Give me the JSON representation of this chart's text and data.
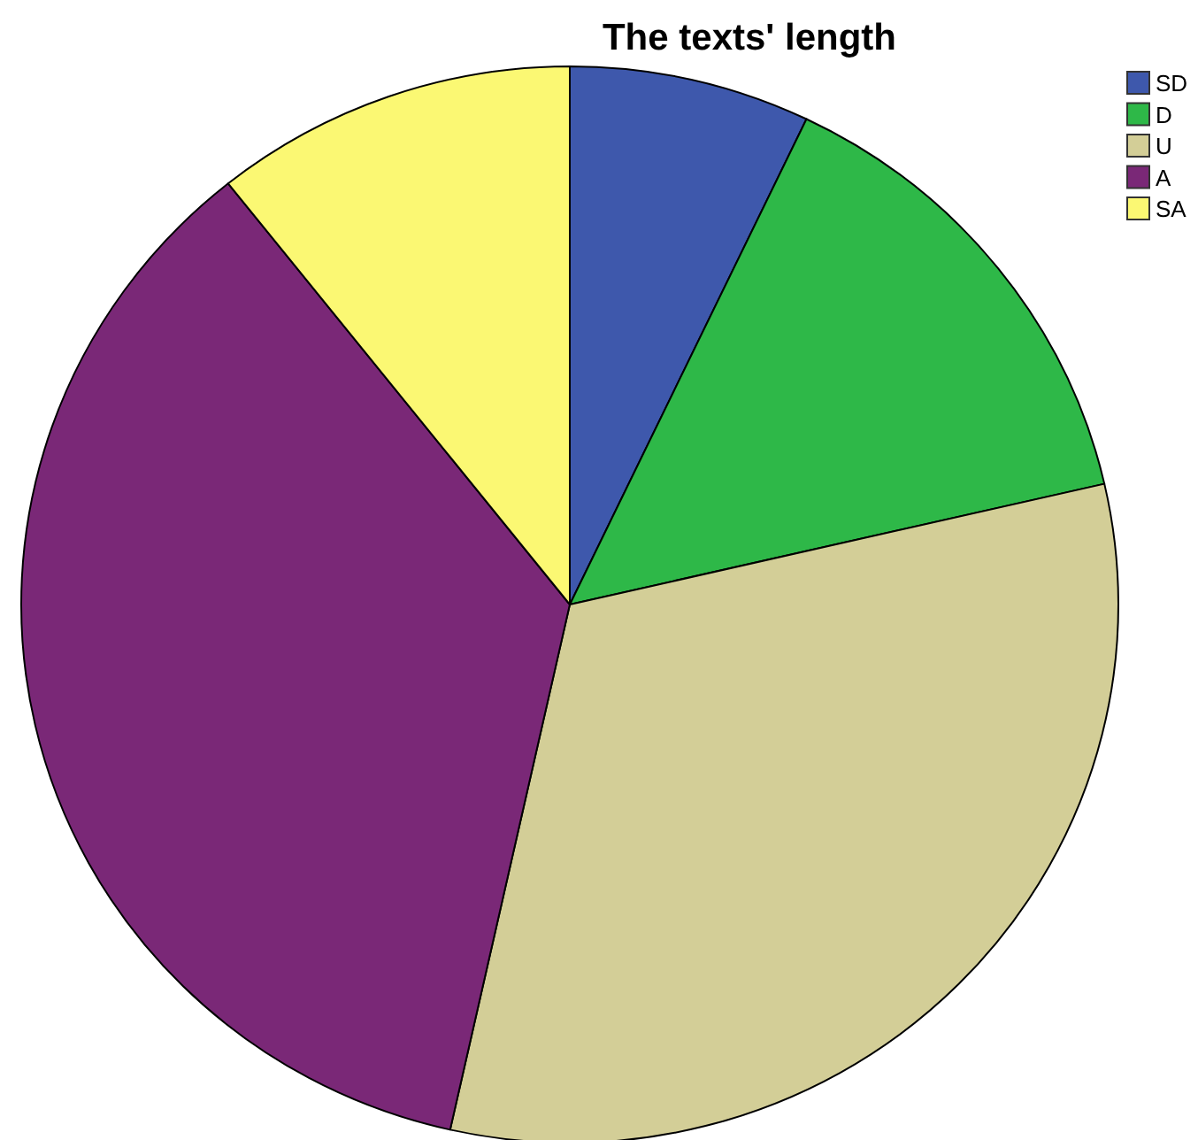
{
  "chart_data": {
    "type": "pie",
    "title": "The texts' length",
    "categories": [
      "SD",
      "D",
      "U",
      "A",
      "SA"
    ],
    "values": [
      7.1,
      14.3,
      32.1,
      35.8,
      10.7
    ],
    "colors": [
      "#3e58ac",
      "#2eb848",
      "#d3ce97",
      "#7a2877",
      "#fbf873"
    ],
    "legend": "top right"
  }
}
